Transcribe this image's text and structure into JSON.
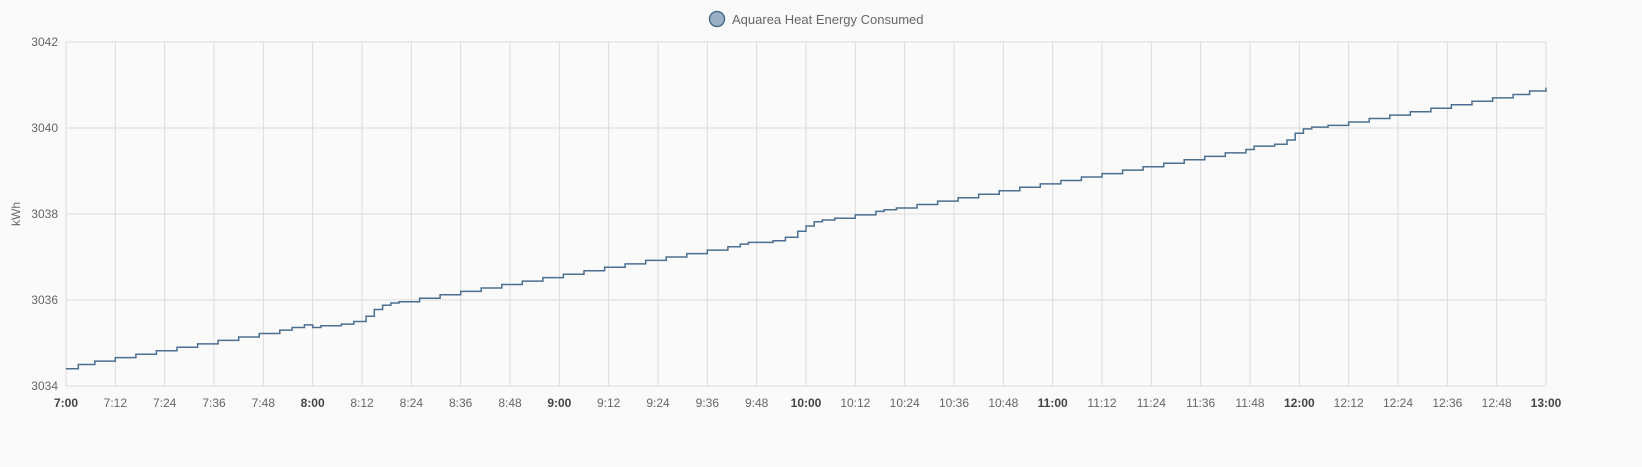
{
  "legend": {
    "label": "Aquarea Heat Energy Consumed",
    "color": "#9bb0c5",
    "border": "#4b6f91"
  },
  "chart_data": {
    "type": "line",
    "ylabel": "kWh",
    "ylim": [
      3034,
      3042
    ],
    "yticks": [
      "3034",
      "3036",
      "3038",
      "3040",
      "3042"
    ],
    "xticks": [
      {
        "label": "7:00",
        "major": true
      },
      {
        "label": "7:12",
        "major": false
      },
      {
        "label": "7:24",
        "major": false
      },
      {
        "label": "7:36",
        "major": false
      },
      {
        "label": "7:48",
        "major": false
      },
      {
        "label": "8:00",
        "major": true
      },
      {
        "label": "8:12",
        "major": false
      },
      {
        "label": "8:24",
        "major": false
      },
      {
        "label": "8:36",
        "major": false
      },
      {
        "label": "8:48",
        "major": false
      },
      {
        "label": "9:00",
        "major": true
      },
      {
        "label": "9:12",
        "major": false
      },
      {
        "label": "9:24",
        "major": false
      },
      {
        "label": "9:36",
        "major": false
      },
      {
        "label": "9:48",
        "major": false
      },
      {
        "label": "10:00",
        "major": true
      },
      {
        "label": "10:12",
        "major": false
      },
      {
        "label": "10:24",
        "major": false
      },
      {
        "label": "10:36",
        "major": false
      },
      {
        "label": "10:48",
        "major": false
      },
      {
        "label": "11:00",
        "major": true
      },
      {
        "label": "11:12",
        "major": false
      },
      {
        "label": "11:24",
        "major": false
      },
      {
        "label": "11:36",
        "major": false
      },
      {
        "label": "11:48",
        "major": false
      },
      {
        "label": "12:00",
        "major": true
      },
      {
        "label": "12:12",
        "major": false
      },
      {
        "label": "12:24",
        "major": false
      },
      {
        "label": "12:36",
        "major": false
      },
      {
        "label": "12:48",
        "major": false
      },
      {
        "label": "13:00",
        "major": true
      }
    ],
    "grid": true,
    "legend_position": "top-center",
    "series": [
      {
        "name": "Aquarea Heat Energy Consumed",
        "color": "#4b6f91",
        "step": true,
        "points": [
          [
            "7:00",
            3034.4
          ],
          [
            "7:03",
            3034.5
          ],
          [
            "7:07",
            3034.58
          ],
          [
            "7:12",
            3034.66
          ],
          [
            "7:17",
            3034.74
          ],
          [
            "7:22",
            3034.82
          ],
          [
            "7:27",
            3034.9
          ],
          [
            "7:32",
            3034.98
          ],
          [
            "7:37",
            3035.06
          ],
          [
            "7:42",
            3035.14
          ],
          [
            "7:47",
            3035.22
          ],
          [
            "7:52",
            3035.3
          ],
          [
            "7:55",
            3035.36
          ],
          [
            "7:58",
            3035.42
          ],
          [
            "8:00",
            3035.36
          ],
          [
            "8:02",
            3035.4
          ],
          [
            "8:07",
            3035.44
          ],
          [
            "8:10",
            3035.5
          ],
          [
            "8:13",
            3035.62
          ],
          [
            "8:15",
            3035.78
          ],
          [
            "8:17",
            3035.88
          ],
          [
            "8:19",
            3035.93
          ],
          [
            "8:21",
            3035.96
          ],
          [
            "8:26",
            3036.04
          ],
          [
            "8:31",
            3036.12
          ],
          [
            "8:36",
            3036.2
          ],
          [
            "8:41",
            3036.28
          ],
          [
            "8:46",
            3036.36
          ],
          [
            "8:51",
            3036.44
          ],
          [
            "8:56",
            3036.52
          ],
          [
            "9:01",
            3036.6
          ],
          [
            "9:06",
            3036.68
          ],
          [
            "9:11",
            3036.76
          ],
          [
            "9:16",
            3036.84
          ],
          [
            "9:21",
            3036.92
          ],
          [
            "9:26",
            3037.0
          ],
          [
            "9:31",
            3037.08
          ],
          [
            "9:36",
            3037.16
          ],
          [
            "9:41",
            3037.24
          ],
          [
            "9:44",
            3037.3
          ],
          [
            "9:46",
            3037.34
          ],
          [
            "9:52",
            3037.38
          ],
          [
            "9:55",
            3037.46
          ],
          [
            "9:58",
            3037.6
          ],
          [
            "10:00",
            3037.72
          ],
          [
            "10:02",
            3037.82
          ],
          [
            "10:04",
            3037.86
          ],
          [
            "10:07",
            3037.9
          ],
          [
            "10:12",
            3037.98
          ],
          [
            "10:17",
            3038.06
          ],
          [
            "10:19",
            3038.1
          ],
          [
            "10:22",
            3038.14
          ],
          [
            "10:27",
            3038.22
          ],
          [
            "10:32",
            3038.3
          ],
          [
            "10:37",
            3038.38
          ],
          [
            "10:42",
            3038.46
          ],
          [
            "10:47",
            3038.54
          ],
          [
            "10:52",
            3038.62
          ],
          [
            "10:57",
            3038.7
          ],
          [
            "11:02",
            3038.78
          ],
          [
            "11:07",
            3038.86
          ],
          [
            "11:12",
            3038.94
          ],
          [
            "11:17",
            3039.02
          ],
          [
            "11:22",
            3039.1
          ],
          [
            "11:27",
            3039.18
          ],
          [
            "11:32",
            3039.26
          ],
          [
            "11:37",
            3039.34
          ],
          [
            "11:42",
            3039.42
          ],
          [
            "11:47",
            3039.5
          ],
          [
            "11:49",
            3039.58
          ],
          [
            "11:54",
            3039.62
          ],
          [
            "11:57",
            3039.72
          ],
          [
            "11:59",
            3039.88
          ],
          [
            "12:01",
            3039.98
          ],
          [
            "12:03",
            3040.02
          ],
          [
            "12:07",
            3040.06
          ],
          [
            "12:12",
            3040.14
          ],
          [
            "12:17",
            3040.22
          ],
          [
            "12:22",
            3040.3
          ],
          [
            "12:27",
            3040.38
          ],
          [
            "12:32",
            3040.46
          ],
          [
            "12:37",
            3040.54
          ],
          [
            "12:42",
            3040.62
          ],
          [
            "12:47",
            3040.7
          ],
          [
            "12:52",
            3040.78
          ],
          [
            "12:56",
            3040.86
          ],
          [
            "13:00",
            3040.94
          ]
        ]
      }
    ]
  }
}
